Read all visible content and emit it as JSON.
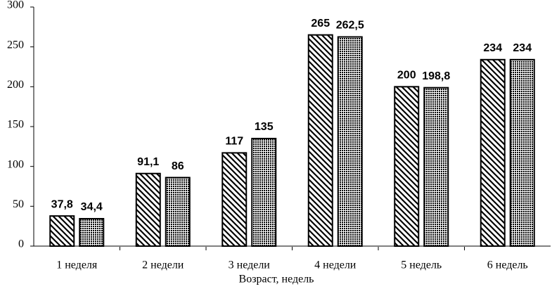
{
  "chart_data": {
    "type": "bar",
    "x_label": "Возраст, недель",
    "categories": [
      "1 неделя",
      "2 недели",
      "3 недели",
      "4 недели",
      "5 недель",
      "6 недель"
    ],
    "series": [
      {
        "color": "#000000",
        "pattern": "hatch",
        "values": [
          37.8,
          91.1,
          117,
          265,
          200,
          234
        ],
        "value_labels": [
          "37,8",
          "91,1",
          "117",
          "265",
          "200",
          "234"
        ]
      },
      {
        "color": "#000000",
        "pattern": "dots",
        "values": [
          34.4,
          86,
          135,
          262.5,
          198.8,
          234
        ],
        "value_labels": [
          "34,4",
          "86",
          "135",
          "262,5",
          "198,8",
          "234"
        ]
      }
    ],
    "ylim": [
      0,
      300
    ],
    "yticks": [
      0,
      50,
      100,
      150,
      200,
      250,
      300
    ]
  }
}
